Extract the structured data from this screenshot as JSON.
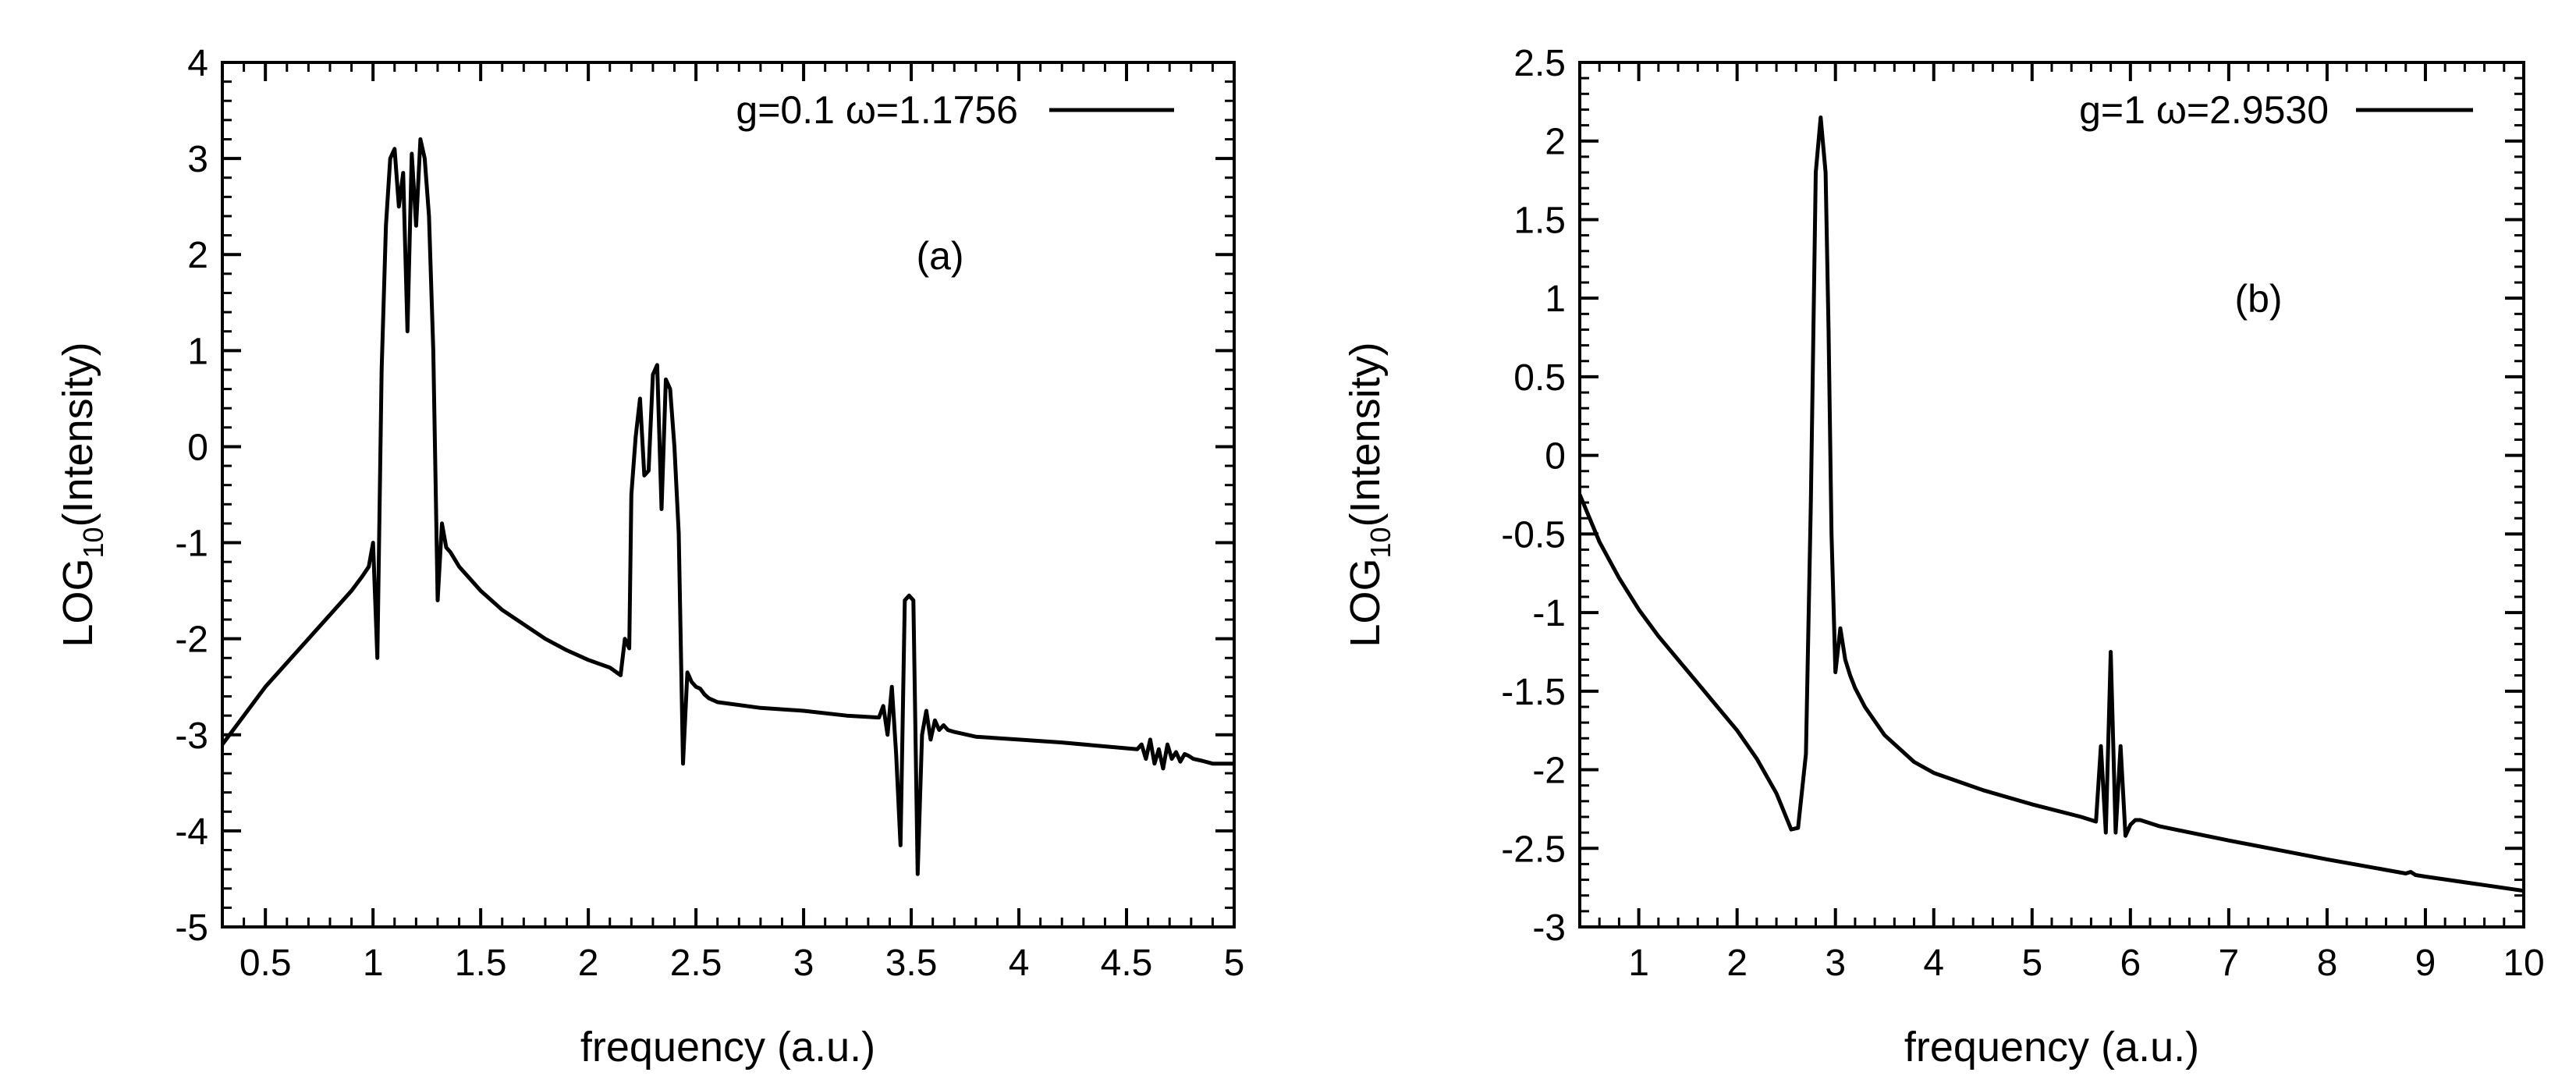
{
  "chart_data": [
    {
      "id": "a",
      "type": "line",
      "annotation": "(a)",
      "xlabel": "frequency (a.u.)",
      "ylabel_main": "LOG",
      "ylabel_sub": "10",
      "ylabel_rest": "(Intensity)",
      "xlim": [
        0.3,
        5
      ],
      "ylim": [
        -5,
        4
      ],
      "xticks": [
        0.5,
        1,
        1.5,
        2,
        2.5,
        3,
        3.5,
        4,
        4.5,
        5
      ],
      "xtick_labels": [
        "0.5",
        "1",
        "1.5",
        "2",
        "2.5",
        "3",
        "3.5",
        "4",
        "4.5",
        "5"
      ],
      "yticks": [
        -5,
        -4,
        -3,
        -2,
        -1,
        0,
        1,
        2,
        3,
        4
      ],
      "ytick_labels": [
        "-5",
        "-4",
        "-3",
        "-2",
        "-1",
        "0",
        "1",
        "2",
        "3",
        "4"
      ],
      "legend_position": "top-right",
      "grid": false,
      "series": [
        {
          "name": "g=0.1 ω=1.1756",
          "color": "#000000",
          "x": [
            0.3,
            0.4,
            0.5,
            0.6,
            0.7,
            0.8,
            0.9,
            0.95,
            0.98,
            1.0,
            1.02,
            1.04,
            1.06,
            1.08,
            1.1,
            1.12,
            1.14,
            1.16,
            1.18,
            1.2,
            1.22,
            1.24,
            1.26,
            1.28,
            1.3,
            1.32,
            1.34,
            1.36,
            1.4,
            1.5,
            1.6,
            1.7,
            1.8,
            1.9,
            2.0,
            2.1,
            2.15,
            2.17,
            2.19,
            2.2,
            2.22,
            2.24,
            2.26,
            2.28,
            2.3,
            2.32,
            2.34,
            2.36,
            2.38,
            2.4,
            2.42,
            2.44,
            2.46,
            2.48,
            2.5,
            2.52,
            2.54,
            2.56,
            2.6,
            2.8,
            3.0,
            3.2,
            3.35,
            3.37,
            3.39,
            3.41,
            3.43,
            3.45,
            3.47,
            3.49,
            3.51,
            3.53,
            3.55,
            3.57,
            3.59,
            3.61,
            3.63,
            3.65,
            3.67,
            3.7,
            3.8,
            4.0,
            4.2,
            4.4,
            4.55,
            4.57,
            4.59,
            4.61,
            4.63,
            4.65,
            4.67,
            4.69,
            4.71,
            4.73,
            4.75,
            4.77,
            4.79,
            4.81,
            4.85,
            4.9,
            5.0
          ],
          "y": [
            -3.1,
            -2.8,
            -2.5,
            -2.25,
            -2.0,
            -1.75,
            -1.5,
            -1.35,
            -1.25,
            -1.0,
            -2.2,
            0.8,
            2.3,
            3.0,
            3.1,
            2.5,
            2.85,
            1.2,
            3.05,
            2.3,
            3.2,
            3.0,
            2.4,
            1.0,
            -1.6,
            -0.8,
            -1.05,
            -1.1,
            -1.25,
            -1.5,
            -1.7,
            -1.85,
            -2.0,
            -2.12,
            -2.22,
            -2.3,
            -2.38,
            -2.0,
            -2.1,
            -0.5,
            0.1,
            0.5,
            -0.3,
            -0.25,
            0.75,
            0.85,
            -0.65,
            0.7,
            0.6,
            0.0,
            -0.9,
            -3.3,
            -2.35,
            -2.45,
            -2.5,
            -2.52,
            -2.58,
            -2.62,
            -2.66,
            -2.72,
            -2.75,
            -2.8,
            -2.82,
            -2.7,
            -3.0,
            -2.5,
            -3.2,
            -4.15,
            -1.6,
            -1.55,
            -1.6,
            -4.45,
            -3.0,
            -2.75,
            -3.05,
            -2.85,
            -2.95,
            -2.9,
            -2.95,
            -2.97,
            -3.02,
            -3.05,
            -3.08,
            -3.12,
            -3.15,
            -3.1,
            -3.25,
            -3.05,
            -3.3,
            -3.15,
            -3.35,
            -3.1,
            -3.25,
            -3.18,
            -3.28,
            -3.2,
            -3.22,
            -3.25,
            -3.27,
            -3.3,
            -3.3
          ]
        }
      ]
    },
    {
      "id": "b",
      "type": "line",
      "annotation": "(b)",
      "xlabel": "frequency (a.u.)",
      "ylabel_main": "LOG",
      "ylabel_sub": "10",
      "ylabel_rest": "(Intensity)",
      "xlim": [
        0.4,
        10
      ],
      "ylim": [
        -3,
        2.5
      ],
      "xticks": [
        1,
        2,
        3,
        4,
        5,
        6,
        7,
        8,
        9,
        10
      ],
      "xtick_labels": [
        "1",
        "2",
        "3",
        "4",
        "5",
        "6",
        "7",
        "8",
        "9",
        "10"
      ],
      "yticks": [
        -3,
        -2.5,
        -2,
        -1.5,
        -1,
        -0.5,
        0,
        0.5,
        1,
        1.5,
        2,
        2.5
      ],
      "ytick_labels": [
        "-3",
        "-2.5",
        "-2",
        "-1.5",
        "-1",
        "-0.5",
        "0",
        "0.5",
        "1",
        "1.5",
        "2",
        "2.5"
      ],
      "legend_position": "top-right",
      "grid": false,
      "series": [
        {
          "name": "g=1 ω=2.9530",
          "color": "#000000",
          "x": [
            0.4,
            0.6,
            0.8,
            1.0,
            1.2,
            1.4,
            1.6,
            1.8,
            2.0,
            2.2,
            2.4,
            2.55,
            2.62,
            2.7,
            2.75,
            2.8,
            2.85,
            2.9,
            2.93,
            2.96,
            3.0,
            3.05,
            3.1,
            3.15,
            3.2,
            3.3,
            3.5,
            3.8,
            4.0,
            4.5,
            5.0,
            5.5,
            5.65,
            5.7,
            5.75,
            5.8,
            5.85,
            5.9,
            5.95,
            6.0,
            6.05,
            6.1,
            6.3,
            7.0,
            8.0,
            8.8,
            8.85,
            8.9,
            9.0,
            10.0
          ],
          "y": [
            -0.25,
            -0.55,
            -0.78,
            -0.98,
            -1.15,
            -1.3,
            -1.45,
            -1.6,
            -1.75,
            -1.93,
            -2.15,
            -2.38,
            -2.37,
            -1.9,
            -0.3,
            1.8,
            2.15,
            1.8,
            0.8,
            -0.5,
            -1.38,
            -1.1,
            -1.3,
            -1.4,
            -1.48,
            -1.6,
            -1.78,
            -1.95,
            -2.02,
            -2.13,
            -2.22,
            -2.3,
            -2.33,
            -1.85,
            -2.4,
            -1.25,
            -2.4,
            -1.85,
            -2.42,
            -2.35,
            -2.32,
            -2.32,
            -2.36,
            -2.45,
            -2.57,
            -2.66,
            -2.65,
            -2.67,
            -2.68,
            -2.77
          ]
        }
      ]
    }
  ]
}
